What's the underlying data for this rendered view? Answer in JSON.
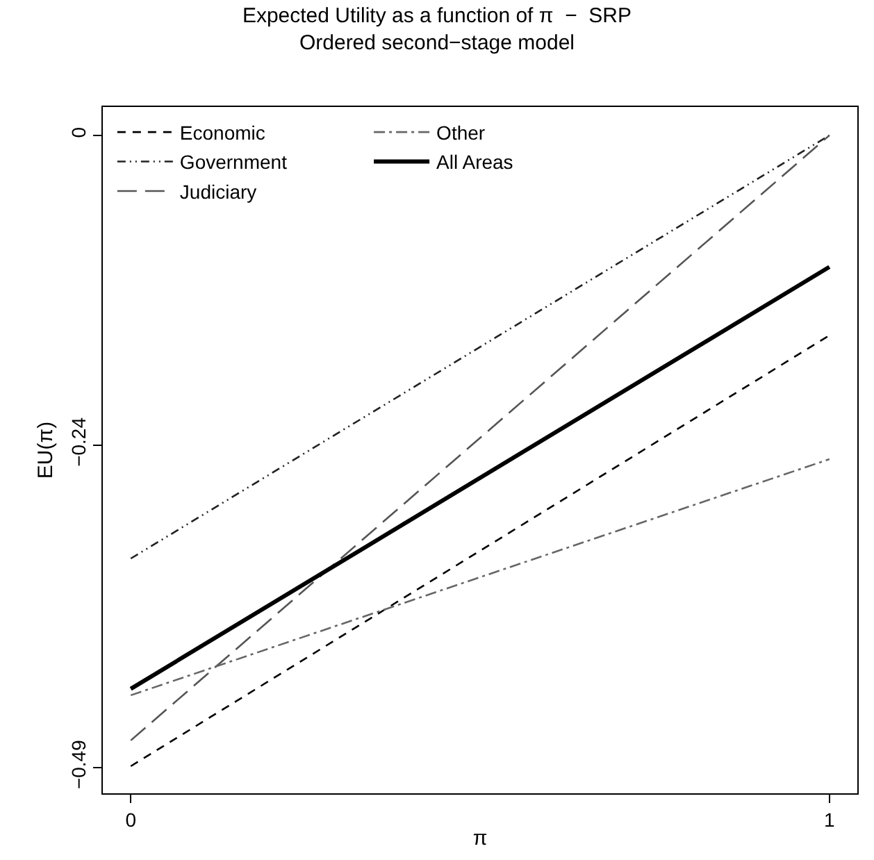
{
  "chart_data": {
    "type": "line",
    "title": "Expected Utility as a function of π  −  SRP",
    "subtitle": "Ordered second−stage model",
    "xlabel": "π",
    "ylabel": "EU(π)",
    "x": [
      0,
      1
    ],
    "series": [
      {
        "name": "Economic",
        "color": "#000000",
        "line_style": "dashed",
        "values": [
          -0.489,
          -0.155
        ]
      },
      {
        "name": "Government",
        "color": "#222222",
        "line_style": "dashdotdot",
        "values": [
          -0.328,
          0
        ]
      },
      {
        "name": "Judiciary",
        "color": "#555555",
        "line_style": "longdash",
        "values": [
          -0.469,
          0
        ]
      },
      {
        "name": "Other",
        "color": "#666666",
        "line_style": "dashdot",
        "values": [
          -0.434,
          -0.251
        ]
      },
      {
        "name": "All Areas",
        "color": "#000000",
        "line_style": "solid",
        "values": [
          -0.429,
          -0.102
        ]
      }
    ],
    "xlim": [
      -0.04,
      1.04
    ],
    "xticks": [
      0,
      1
    ],
    "ylim": [
      -0.51,
      0.022
    ],
    "yticks": [
      0,
      -0.24,
      -0.49
    ],
    "grid": false,
    "legend": "top left",
    "marker": "none"
  }
}
